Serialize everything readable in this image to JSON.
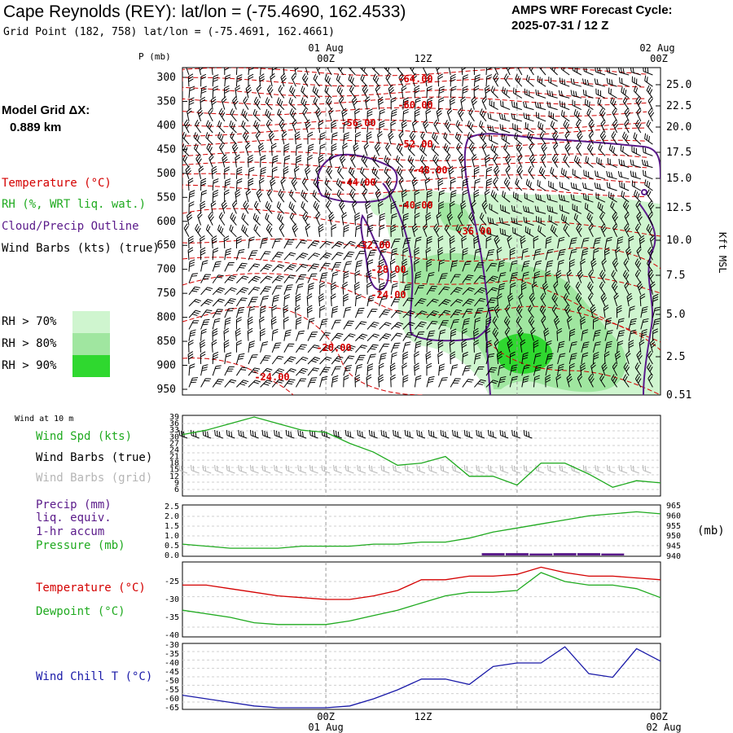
{
  "header": {
    "station": "Cape Reynolds (REY):  lat/lon = (-75.4690, 162.4533)",
    "grid_point": "Grid Point (182, 758) lat/lon = (-75.4691, 162.4661)",
    "cycle_line1": "AMPS WRF Forecast Cycle:",
    "cycle_line2": "2025-07-31 / 12  Z"
  },
  "model_grid": {
    "label": "Model Grid ΔX:",
    "value": "0.889 km"
  },
  "legend": {
    "temperature": "Temperature (°C)",
    "rh": "RH (%, WRT liq. wat.)",
    "cloud": "Cloud/Precip Outline",
    "wind": "Wind Barbs (kts) (true)",
    "rh70": "RH > 70%",
    "rh80": "RH > 80%",
    "rh90": "RH > 90%",
    "color_temp": "#d40000",
    "color_rh": "#1faa1f",
    "color_cloud": "#5a1a8a",
    "color_rh70": "#cff5cf",
    "color_rh80": "#a0e6a0",
    "color_rh90": "#2fd82f"
  },
  "time_axis": {
    "top_dates": [
      "01 Aug",
      "02 Aug"
    ],
    "ticks": [
      "00Z",
      "12Z",
      "00Z"
    ],
    "bottom_dates": [
      "01 Aug",
      "02 Aug"
    ]
  },
  "main_panel": {
    "p_label": "P (mb)",
    "p_ticks": [
      "300",
      "350",
      "400",
      "450",
      "500",
      "550",
      "600",
      "650",
      "700",
      "750",
      "800",
      "850",
      "900",
      "950"
    ],
    "kft_ticks": [
      "25.0",
      "22.5",
      "20.0",
      "17.5",
      "15.0",
      "12.5",
      "10.0",
      "7.5",
      "5.0",
      "2.5",
      "0.51"
    ],
    "right_label": "Kft MSL",
    "temp_labels": [
      "-64.00",
      "-60.00",
      "-56.00",
      "-52.00",
      "-48.00",
      "-44.00",
      "-40.00",
      "-36.00",
      "-32.00",
      "-28.00",
      "-24.00",
      "-20.00",
      "-24.00"
    ]
  },
  "wind_panel": {
    "title": "Wind at 10 m",
    "spd_label": "Wind Spd (kts)",
    "barbs_true": "Wind Barbs (true)",
    "barbs_grid": "Wind Barbs (grid)",
    "yticks": [
      "39",
      "36",
      "33",
      "30",
      "27",
      "24",
      "21",
      "18",
      "15",
      "12",
      "9",
      "6"
    ]
  },
  "precip_panel": {
    "precip_label": "Precip (mm)",
    "liq": "liq. equiv.",
    "accum": "1-hr accum",
    "pressure_label": "Pressure (mb)",
    "right_unit": "(mb)",
    "left_ticks": [
      "2.5",
      "2.0",
      "1.5",
      "1.0",
      "0.5",
      "0.0"
    ],
    "right_ticks": [
      "965",
      "960",
      "955",
      "950",
      "945",
      "940"
    ]
  },
  "temp_panel": {
    "temp_label": "Temperature (°C)",
    "dew_label": "Dewpoint (°C)",
    "yticks": [
      "-25",
      "-30",
      "-35",
      "-40"
    ]
  },
  "chill_panel": {
    "label": "Wind Chill T (°C)",
    "yticks": [
      "-30",
      "-35",
      "-40",
      "-45",
      "-50",
      "-55",
      "-60",
      "-65"
    ]
  },
  "chart_data": [
    {
      "type": "line",
      "title": "Wind at 10 m",
      "ylabel": "Wind Spd (kts)",
      "ylim": [
        6,
        39
      ],
      "x": [
        -18,
        -15,
        -12,
        -9,
        -6,
        -3,
        0,
        3,
        6,
        9,
        12,
        15,
        18,
        21,
        24,
        27,
        30,
        33,
        36,
        39,
        42
      ],
      "series": [
        {
          "name": "Wind Spd (kts)",
          "values": [
            31,
            33,
            36,
            39,
            36,
            33,
            32,
            27,
            23,
            17,
            18,
            21,
            12,
            12,
            8,
            18,
            18,
            13,
            7,
            10,
            9
          ]
        }
      ]
    },
    {
      "type": "line",
      "ylim_precip": [
        0,
        2.5
      ],
      "ylim_pressure": [
        940,
        965
      ],
      "x": [
        -18,
        -15,
        -12,
        -9,
        -6,
        -3,
        0,
        3,
        6,
        9,
        12,
        15,
        18,
        21,
        24,
        27,
        30,
        33,
        36,
        39,
        42
      ],
      "series": [
        {
          "name": "Pressure (mb)",
          "values": [
            946,
            945,
            944,
            944,
            944,
            945,
            945,
            945,
            946,
            946,
            947,
            947,
            949,
            952,
            954,
            956,
            958,
            960,
            961,
            962,
            961
          ]
        },
        {
          "name": "Precip (mm)",
          "values": [
            0,
            0,
            0,
            0,
            0,
            0,
            0,
            0,
            0,
            0,
            0,
            0,
            0,
            0.12,
            0.12,
            0.1,
            0.12,
            0.12,
            0.1,
            0,
            0
          ]
        }
      ]
    },
    {
      "type": "line",
      "ylim": [
        -40,
        -20
      ],
      "x": [
        -18,
        -15,
        -12,
        -9,
        -6,
        -3,
        0,
        3,
        6,
        9,
        12,
        15,
        18,
        21,
        24,
        27,
        30,
        33,
        36,
        39,
        42
      ],
      "series": [
        {
          "name": "Temperature (°C)",
          "values": [
            -26,
            -26,
            -27,
            -28,
            -29,
            -29.5,
            -30,
            -30,
            -29,
            -27.5,
            -24.5,
            -24.5,
            -23.5,
            -23.5,
            -23,
            -21,
            -22.5,
            -23.5,
            -23.5,
            -24,
            -24.5
          ]
        },
        {
          "name": "Dewpoint (°C)",
          "values": [
            -33,
            -34,
            -35,
            -36.5,
            -37,
            -37,
            -37,
            -36,
            -34.5,
            -33,
            -31,
            -29,
            -28,
            -28,
            -27.5,
            -22.5,
            -25,
            -26,
            -26,
            -27,
            -29.5
          ]
        }
      ]
    },
    {
      "type": "line",
      "ylim": [
        -65,
        -30
      ],
      "x": [
        -18,
        -15,
        -12,
        -9,
        -6,
        -3,
        0,
        3,
        6,
        9,
        12,
        15,
        18,
        21,
        24,
        27,
        30,
        33,
        36,
        39,
        42
      ],
      "series": [
        {
          "name": "Wind Chill T (°C)",
          "values": [
            -58,
            -60,
            -62,
            -64,
            -65,
            -65,
            -65,
            -64,
            -60,
            -55,
            -49,
            -49,
            -52,
            -42,
            -40,
            -40,
            -31,
            -46,
            -48,
            -32,
            -39
          ]
        }
      ]
    }
  ]
}
